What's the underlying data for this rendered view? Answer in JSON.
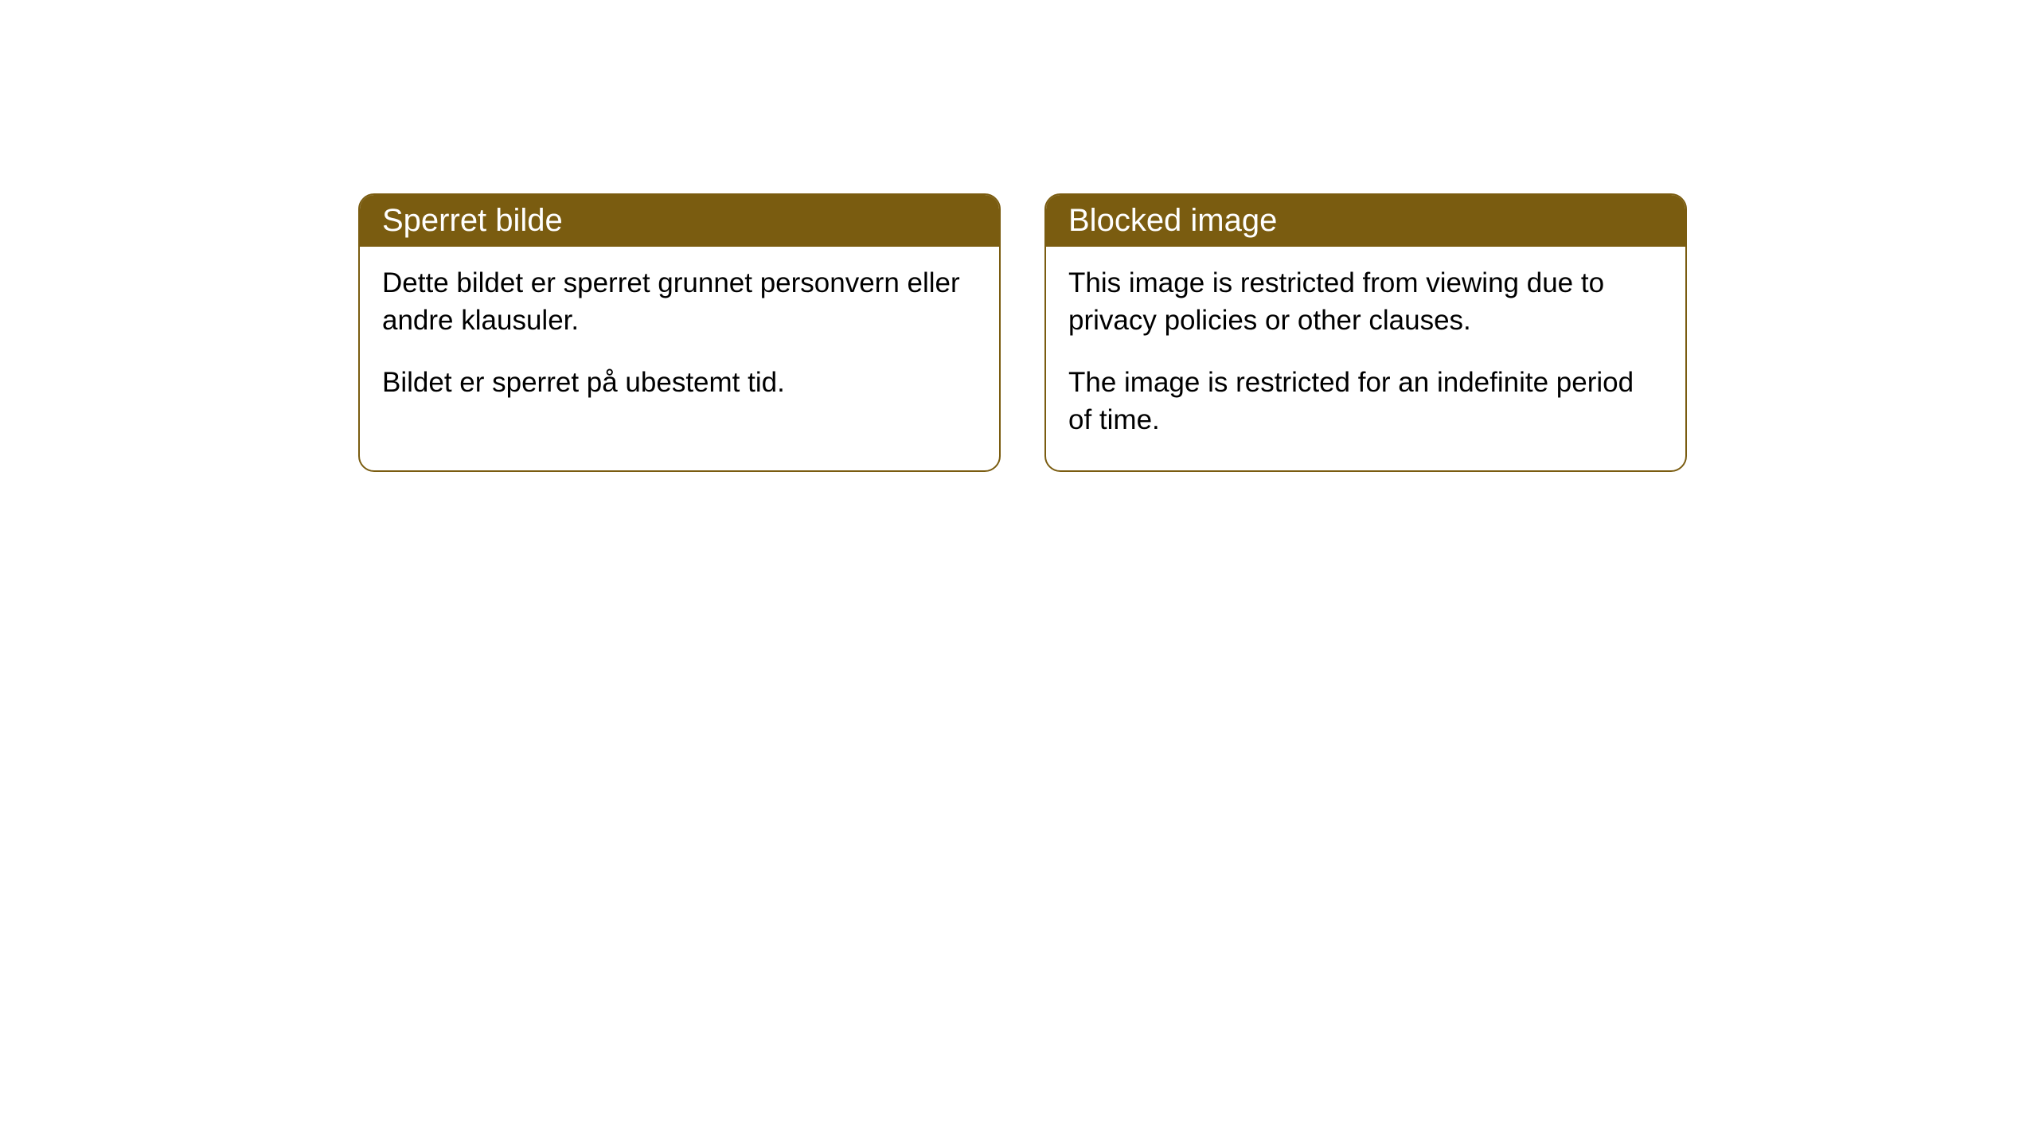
{
  "cards": [
    {
      "title": "Sperret bilde",
      "paragraph1": "Dette bildet er sperret grunnet personvern eller andre klausuler.",
      "paragraph2": "Bildet er sperret på ubestemt tid."
    },
    {
      "title": "Blocked image",
      "paragraph1": "This image is restricted from viewing due to privacy policies or other clauses.",
      "paragraph2": "The image is restricted for an indefinite period of time."
    }
  ],
  "style": {
    "header_bg": "#7a5c10",
    "header_color": "#ffffff",
    "border_color": "#7a5c10",
    "body_bg": "#ffffff",
    "text_color": "#000000",
    "border_radius": 20,
    "title_fontsize": 40,
    "body_fontsize": 35
  }
}
